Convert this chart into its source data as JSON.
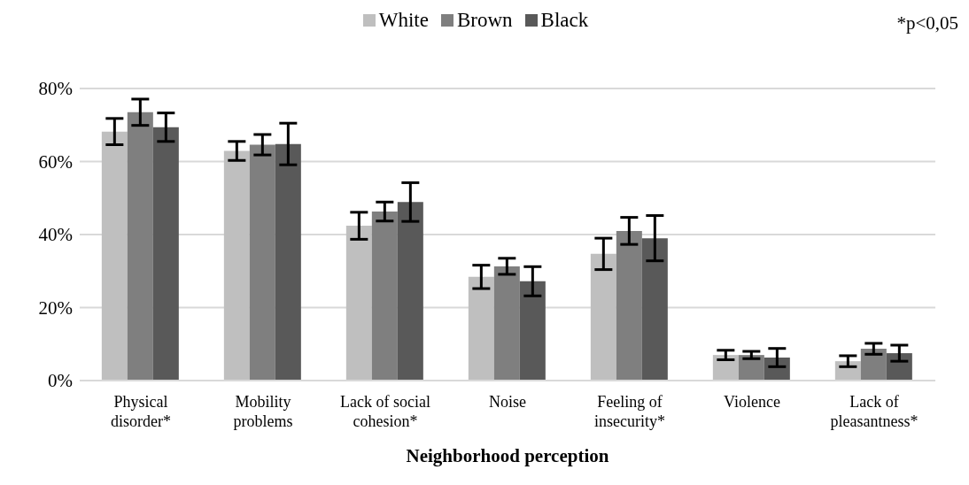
{
  "chart_data": {
    "type": "bar",
    "xlabel": "Neighborhood perception",
    "categories": [
      "Physical disorder*",
      "Mobility problems",
      "Lack of social cohesion*",
      "Noise",
      "Feeling of insecurity*",
      "Violence",
      "Lack of pleasantness*"
    ],
    "series": [
      {
        "name": "White",
        "color": "#bfbfbf",
        "values": [
          68.2,
          62.9,
          42.4,
          28.4,
          34.7,
          7.0,
          5.3
        ],
        "errors": [
          3.6,
          2.6,
          3.7,
          3.2,
          4.3,
          1.3,
          1.5
        ]
      },
      {
        "name": "Brown",
        "color": "#7f7f7f",
        "values": [
          73.5,
          64.6,
          46.3,
          31.3,
          41.0,
          7.0,
          8.7
        ],
        "errors": [
          3.6,
          2.8,
          2.6,
          2.2,
          3.7,
          1.0,
          1.5
        ]
      },
      {
        "name": "Black",
        "color": "#595959",
        "values": [
          69.4,
          64.8,
          48.9,
          27.2,
          39.0,
          6.3,
          7.5
        ],
        "errors": [
          3.9,
          5.7,
          5.3,
          4.0,
          6.2,
          2.5,
          2.2
        ]
      }
    ],
    "ylim": [
      0,
      80
    ],
    "yticks": [
      {
        "value": 0,
        "label": "0%"
      },
      {
        "value": 20,
        "label": "20%"
      },
      {
        "value": 40,
        "label": "40%"
      },
      {
        "value": 60,
        "label": "60%"
      },
      {
        "value": 80,
        "label": "80%"
      }
    ],
    "grid": "y",
    "legend": "top",
    "annotations": [
      "*p<0,05"
    ]
  }
}
